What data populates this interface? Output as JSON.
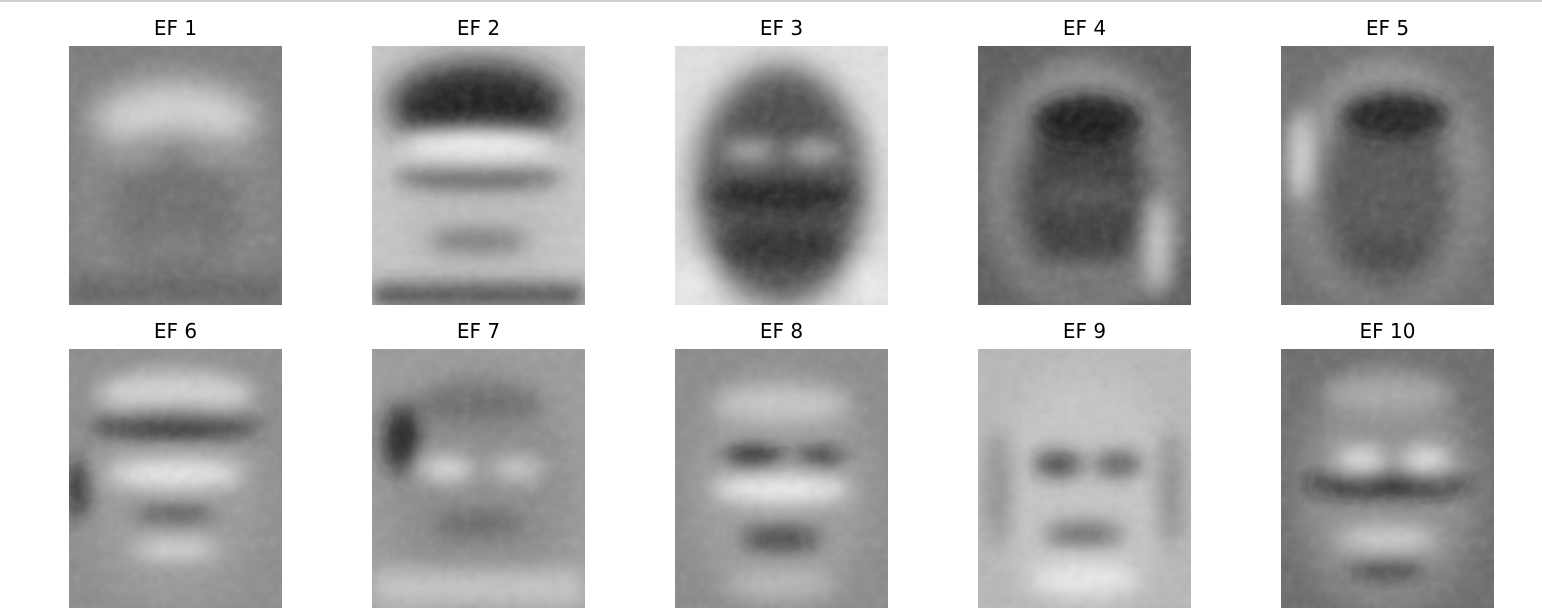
{
  "figure": {
    "panels": [
      {
        "title": "EF 1",
        "tone": "light-headband"
      },
      {
        "title": "EF 2",
        "tone": "dark-hair-bright-eyes"
      },
      {
        "title": "EF 3",
        "tone": "dark-face-light-bg"
      },
      {
        "title": "EF 4",
        "tone": "dark-upper-face"
      },
      {
        "title": "EF 5",
        "tone": "gray-rim-light"
      },
      {
        "title": "EF 6",
        "tone": "bright-eyes-dark-brow"
      },
      {
        "title": "EF 7",
        "tone": "soft-bright-eyes"
      },
      {
        "title": "EF 8",
        "tone": "dark-eyes-bright-cheeks"
      },
      {
        "title": "EF 9",
        "tone": "light-face-dark-eyes"
      },
      {
        "title": "EF 10",
        "tone": "bright-eyes-dark-band"
      }
    ]
  }
}
